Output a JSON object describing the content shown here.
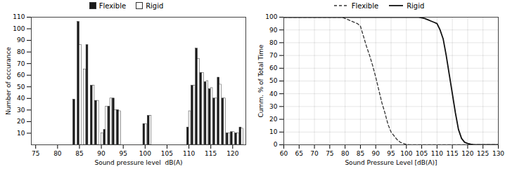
{
  "chart_data": [
    {
      "type": "bar",
      "xlabel": "Sound pressure level  dB(A)",
      "ylabel": "Number of occurance",
      "xlim": [
        74,
        123
      ],
      "xticks": [
        75,
        80,
        85,
        90,
        95,
        100,
        105,
        110,
        115,
        120
      ],
      "ylim": [
        0,
        110
      ],
      "yticks": [
        10,
        20,
        30,
        40,
        50,
        60,
        70,
        80,
        90,
        100,
        110
      ],
      "grid": false,
      "series": [
        {
          "name": "Flexible",
          "color": "#1a1a1a",
          "x": [
            84,
            85,
            87,
            88,
            89,
            91,
            92,
            93,
            94,
            100,
            101,
            110,
            111,
            112,
            113,
            114,
            115,
            116,
            117,
            118,
            119,
            120,
            121,
            122
          ],
          "values": [
            39,
            106,
            86,
            51,
            38,
            13,
            33,
            40,
            30,
            18,
            25,
            15,
            51,
            83,
            62,
            54,
            48,
            40,
            58,
            40,
            10,
            11,
            10,
            15
          ]
        },
        {
          "name": "Rigid",
          "color": "#ffffff",
          "x": [
            85,
            86,
            88,
            89,
            90,
            91,
            92,
            93,
            94,
            100,
            101,
            110,
            111,
            112,
            113,
            114,
            115,
            116,
            117,
            118,
            119,
            120,
            121,
            122
          ],
          "values": [
            86,
            65,
            51,
            38,
            10,
            33,
            40,
            30,
            29,
            18,
            25,
            29,
            51,
            74,
            62,
            55,
            49,
            40,
            52,
            40,
            10,
            11,
            10,
            14
          ]
        }
      ]
    },
    {
      "type": "line",
      "xlabel": "Sound Pressure Level [dB(A)]",
      "ylabel": "Cumm. % of Total Time",
      "xlim": [
        60,
        130
      ],
      "xticks": [
        60,
        65,
        70,
        75,
        80,
        85,
        90,
        95,
        100,
        105,
        110,
        115,
        120,
        125,
        130
      ],
      "ylim": [
        0,
        100
      ],
      "yticks": [
        0,
        10,
        20,
        30,
        40,
        50,
        60,
        70,
        80,
        90,
        100
      ],
      "grid": true,
      "series": [
        {
          "name": "Flexible",
          "color": "#333333",
          "line_style": "dashed",
          "x": [
            60,
            75,
            76,
            77,
            78,
            79,
            80,
            81,
            82,
            83,
            84,
            85,
            86,
            87,
            88,
            89,
            90,
            91,
            92,
            93,
            94,
            95,
            96,
            97,
            98,
            99,
            100,
            101,
            102,
            130
          ],
          "values": [
            100,
            100,
            100,
            100,
            100,
            100,
            99,
            98,
            97,
            96,
            95,
            93,
            85,
            77,
            70,
            62,
            53,
            43,
            33,
            25,
            16,
            10,
            7,
            4,
            2,
            1,
            0.3,
            0.1,
            0,
            0
          ]
        },
        {
          "name": "Rigid",
          "color": "#111111",
          "line_style": "solid",
          "x": [
            60,
            103,
            104,
            105,
            106,
            107,
            108,
            109,
            110,
            111,
            112,
            113,
            114,
            115,
            116,
            117,
            118,
            119,
            120,
            121,
            122,
            123,
            130
          ],
          "values": [
            100,
            100,
            100,
            99.5,
            99,
            98,
            97,
            96,
            95,
            90,
            83,
            70,
            55,
            40,
            25,
            12,
            5,
            2,
            1,
            0.5,
            0.1,
            0,
            0
          ]
        }
      ]
    }
  ]
}
